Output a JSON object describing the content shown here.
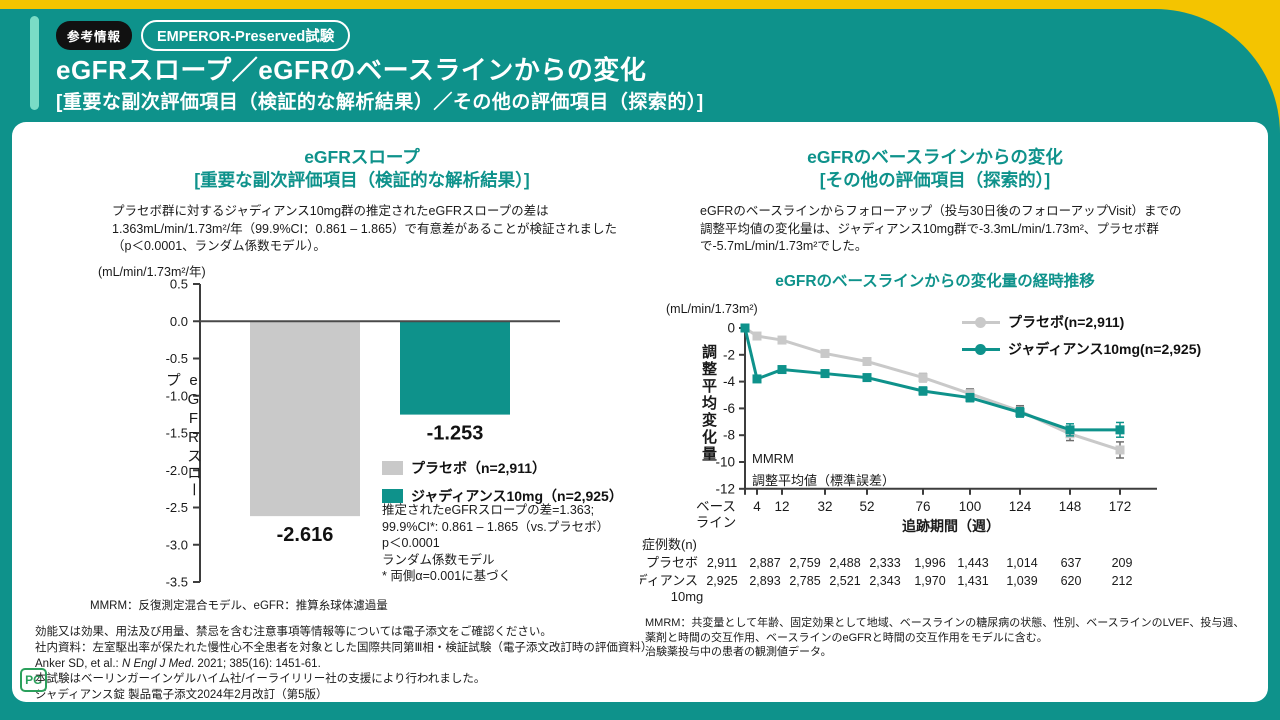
{
  "colors": {
    "teal": "#0E928B",
    "yellow": "#F4C400",
    "mint": "#7ADCC6",
    "gray": "#C9C9C9"
  },
  "header": {
    "badge_ref": "参考情報",
    "badge_trial": "EMPEROR-Preserved試験",
    "title": "eGFRスロープ／eGFRのベースラインからの変化",
    "subtitle": "[重要な副次評価項目（検証的な解析結果）／その他の評価項目（探索的）]"
  },
  "left_panel": {
    "title1": "eGFRスロープ",
    "title2": "[重要な副次評価項目（検証的な解析結果）]",
    "description": [
      "プラセボ群に対するジャディアンス10mg群の推定されたeGFRスロープの差は",
      "1.363mL/min/1.73m²/年（99.9%CI：0.861 – 1.865）で有意差があることが検証されました",
      "（p＜0.0001、ランダム係数モデル）。"
    ],
    "unit": "(mL/min/1.73m²/年)",
    "y_axis_label": "eGFRスロープ",
    "legend": [
      {
        "label": "プラセボ（n=2,911）",
        "color": "#C9C9C9"
      },
      {
        "label": "ジャディアンス10mg（n=2,925）",
        "color": "#0E928B"
      }
    ],
    "notes": [
      "推定されたeGFRスロープの差=1.363;",
      "99.9%CI*: 0.861 – 1.865（vs.プラセボ）",
      "p＜0.0001",
      "ランダム係数モデル",
      "* 両側α=0.001に基づく"
    ],
    "footnote": "MMRM：反復測定混合モデル、eGFR：推算糸球体濾過量"
  },
  "right_panel": {
    "title1": "eGFRのベースラインからの変化",
    "title2": "[その他の評価項目（探索的）]",
    "description": [
      "eGFRのベースラインからフォローアップ（投与30日後のフォローアップVisit）までの",
      "調整平均値の変化量は、ジャディアンス10mg群で-3.3mL/min/1.73m²、プラセボ群",
      "で-5.7mL/min/1.73m²でした。"
    ],
    "chart_title": "eGFRのベースラインからの変化量の経時推移",
    "unit": "(mL/min/1.73m²)",
    "y_axis_label": "調整平均変化量",
    "annotation": [
      "MMRM",
      "調整平均値（標準誤差）"
    ],
    "legend": [
      {
        "label": "プラセボ(n=2,911)",
        "color": "#C9C9C9"
      },
      {
        "label": "ジャディアンス10mg(n=2,925)",
        "color": "#0E928B"
      }
    ],
    "n_table": {
      "caption": "症例数(n)",
      "rows": [
        {
          "label": "プラセボ",
          "label2": "",
          "values": [
            "2,911",
            "2,887",
            "2,759",
            "2,488",
            "2,333",
            "1,996",
            "1,443",
            "1,014",
            "637",
            "209"
          ]
        },
        {
          "label": "ジャディアンス",
          "label2": "10mg",
          "values": [
            "2,925",
            "2,893",
            "2,785",
            "2,521",
            "2,343",
            "1,970",
            "1,431",
            "1,039",
            "620",
            "212"
          ]
        }
      ]
    },
    "footnote": [
      "MMRM：共変量として年齢、固定効果として地域、ベースラインの糖尿病の状態、性別、ベースラインのLVEF、投与週、",
      "薬剤と時間の交互作用、ベースラインのeGFRと時間の交互作用をモデルに含む。",
      "治験薬投与中の患者の観測値データ。"
    ]
  },
  "chart_data": [
    {
      "type": "bar",
      "title": "eGFRスロープ",
      "unit": "(mL/min/1.73m²/年)",
      "ylabel": "eGFRスロープ",
      "ylim": [
        -3.5,
        0.5
      ],
      "ytick_labels": [
        "0.5",
        "0.0",
        "-0.5",
        "-1.0",
        "-1.5",
        "-2.0",
        "-2.5",
        "-3.0",
        "-3.5"
      ],
      "categories": [
        "プラセボ（n=2,911）",
        "ジャディアンス10mg（n=2,925）"
      ],
      "values": [
        -2.616,
        -1.253
      ],
      "value_labels": [
        "-2.616",
        "-1.253"
      ],
      "bar_colors": [
        "#C9C9C9",
        "#0E928B"
      ],
      "grid": false
    },
    {
      "type": "line",
      "title": "eGFRのベースラインからの変化量の経時推移",
      "unit": "(mL/min/1.73m²)",
      "ylabel": "調整平均変化量",
      "xlabel": "追跡期間（週）",
      "ylim": [
        -12,
        0
      ],
      "yticks": [
        0,
        -2,
        -4,
        -6,
        -8,
        -10,
        -12
      ],
      "ytick_labels": [
        "0",
        "-2",
        "-4",
        "-6",
        "-8",
        "-10",
        "-12"
      ],
      "x_categories": [
        "ベースライン",
        "4",
        "12",
        "32",
        "52",
        "76",
        "100",
        "124",
        "148",
        "172"
      ],
      "baseline_label": [
        "ベース",
        "ライン"
      ],
      "legend_position": "top-right",
      "grid": false,
      "series": [
        {
          "name": "プラセボ(n=2,911)",
          "color": "#C9C9C9",
          "error_color": "#6e6e6e",
          "values": [
            0,
            -0.6,
            -0.9,
            -1.9,
            -2.5,
            -3.7,
            -4.9,
            -6.2,
            -7.9,
            -9.1
          ],
          "errors": [
            0,
            0.2,
            0.2,
            0.25,
            0.25,
            0.3,
            0.35,
            0.4,
            0.5,
            0.6
          ]
        },
        {
          "name": "ジャディアンス10mg(n=2,925)",
          "color": "#0E928B",
          "error_color": "#0E928B",
          "values": [
            0,
            -3.8,
            -3.1,
            -3.4,
            -3.7,
            -4.7,
            -5.2,
            -6.3,
            -7.6,
            -7.6
          ],
          "errors": [
            0,
            0.2,
            0.2,
            0.25,
            0.25,
            0.3,
            0.3,
            0.35,
            0.45,
            0.55
          ]
        }
      ]
    }
  ],
  "footer": {
    "line1": "効能又は効果、用法及び用量、禁忌を含む注意事項等情報等については電子添文をご確認ください。",
    "line2": "社内資料：左室駆出率が保たれた慢性心不全患者を対象とした国際共同第Ⅲ相・検証試験（電子添文改訂時の評価資料）",
    "reference_prefix": "Anker SD, et al.: ",
    "reference_journal": "N Engl J Med",
    "reference_suffix": ". 2021; 385(16): 1451-61.",
    "line4": "本試験はベーリンガーインゲルハイム社/イーライリリー社の支援により行われました。",
    "line5": "ジャディアンス錠 製品電子添文2024年2月改訂（第5版）",
    "pc_mark": "PC"
  }
}
